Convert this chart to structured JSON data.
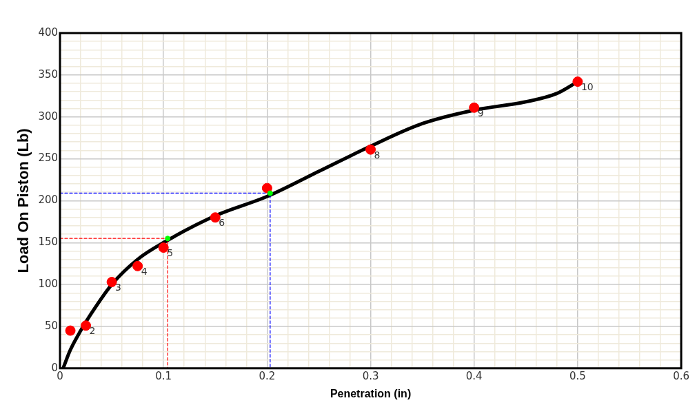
{
  "chart_data": {
    "type": "line",
    "xlabel": "Penetration (in)",
    "ylabel": "Load On Piston (Lb)",
    "xlim": [
      0,
      0.6
    ],
    "ylim": [
      0,
      400
    ],
    "xticks": [
      0,
      {
        "value": 0.02,
        "label": null
      },
      {
        "value": 0.04,
        "label": null
      },
      {
        "value": 0.06,
        "label": null
      },
      {
        "value": 0.08,
        "label": null
      },
      0.1,
      {
        "value": 0.12,
        "label": null
      },
      {
        "value": 0.14,
        "label": null
      },
      {
        "value": 0.16,
        "label": null
      },
      {
        "value": 0.18,
        "label": null
      },
      0.2,
      {
        "value": 0.22,
        "label": null
      },
      {
        "value": 0.24,
        "label": null
      },
      {
        "value": 0.26,
        "label": null
      },
      {
        "value": 0.28,
        "label": null
      },
      0.3,
      {
        "value": 0.32,
        "label": null
      },
      {
        "value": 0.34,
        "label": null
      },
      {
        "value": 0.36,
        "label": null
      },
      {
        "value": 0.38,
        "label": null
      },
      0.4,
      {
        "value": 0.42,
        "label": null
      },
      {
        "value": 0.44,
        "label": null
      },
      {
        "value": 0.46,
        "label": null
      },
      {
        "value": 0.48,
        "label": null
      },
      0.5,
      {
        "value": 0.52,
        "label": null
      },
      {
        "value": 0.54,
        "label": null
      },
      {
        "value": 0.56,
        "label": null
      },
      {
        "value": 0.58,
        "label": null
      },
      0.6
    ],
    "yticks": [
      0,
      {
        "value": 10,
        "label": null
      },
      {
        "value": 20,
        "label": null
      },
      {
        "value": 30,
        "label": null
      },
      {
        "value": 40,
        "label": null
      },
      50,
      {
        "value": 60,
        "label": null
      },
      {
        "value": 70,
        "label": null
      },
      {
        "value": 80,
        "label": null
      },
      {
        "value": 90,
        "label": null
      },
      100,
      {
        "value": 110,
        "label": null
      },
      {
        "value": 120,
        "label": null
      },
      {
        "value": 130,
        "label": null
      },
      {
        "value": 140,
        "label": null
      },
      150,
      {
        "value": 160,
        "label": null
      },
      {
        "value": 170,
        "label": null
      },
      {
        "value": 180,
        "label": null
      },
      {
        "value": 190,
        "label": null
      },
      200,
      {
        "value": 210,
        "label": null
      },
      {
        "value": 220,
        "label": null
      },
      {
        "value": 230,
        "label": null
      },
      {
        "value": 240,
        "label": null
      },
      250,
      {
        "value": 260,
        "label": null
      },
      {
        "value": 270,
        "label": null
      },
      {
        "value": 280,
        "label": null
      },
      {
        "value": 290,
        "label": null
      },
      300,
      {
        "value": 310,
        "label": null
      },
      {
        "value": 320,
        "label": null
      },
      {
        "value": 330,
        "label": null
      },
      {
        "value": 340,
        "label": null
      },
      350,
      {
        "value": 360,
        "label": null
      },
      {
        "value": 370,
        "label": null
      },
      {
        "value": 380,
        "label": null
      },
      {
        "value": 390,
        "label": null
      },
      400
    ],
    "grid": true,
    "legend": false,
    "annotations": [
      {
        "text": "2",
        "x": 0.025,
        "y": 51
      },
      {
        "text": "3",
        "x": 0.05,
        "y": 103
      },
      {
        "text": "4",
        "x": 0.075,
        "y": 122
      },
      {
        "text": "5",
        "x": 0.1,
        "y": 144
      },
      {
        "text": "6",
        "x": 0.15,
        "y": 180
      },
      {
        "text": "8",
        "x": 0.3,
        "y": 261
      },
      {
        "text": "9",
        "x": 0.4,
        "y": 311
      },
      {
        "text": "10",
        "x": 0.5,
        "y": 342
      }
    ],
    "series": [
      {
        "color": "#000000",
        "marker": "none",
        "line_style": "solid",
        "x": [
          0.003,
          0.01,
          0.02,
          0.03,
          0.05,
          0.075,
          0.1,
          0.15,
          0.2,
          0.25,
          0.3,
          0.35,
          0.4,
          0.45,
          0.48,
          0.5
        ],
        "values": [
          0,
          22,
          45,
          65,
          100,
          130,
          150,
          182,
          205,
          235,
          265,
          292,
          308,
          318,
          328,
          342
        ]
      },
      {
        "type": "scatter",
        "color": "#ff0000",
        "marker": "circle",
        "x": [
          0.01,
          0.025,
          0.05,
          0.075,
          0.1,
          0.15,
          0.2,
          0.3,
          0.4,
          0.5
        ],
        "values": [
          45,
          51,
          103,
          122,
          144,
          180,
          215,
          261,
          311,
          342
        ]
      },
      {
        "type": "line",
        "color": "#ff0000",
        "marker": "none",
        "line_style": "dashed",
        "x": [
          0,
          0.104,
          0.104
        ],
        "values": [
          155,
          155,
          0
        ]
      },
      {
        "type": "line",
        "color": "#0000ff",
        "marker": "none",
        "line_style": "dashed",
        "x": [
          0,
          0.203,
          0.203
        ],
        "values": [
          209,
          209,
          0
        ]
      },
      {
        "type": "scatter",
        "color": "#00ff00",
        "marker": "circle",
        "x": [
          0.104,
          0.203
        ],
        "values": [
          155,
          209
        ]
      }
    ]
  }
}
